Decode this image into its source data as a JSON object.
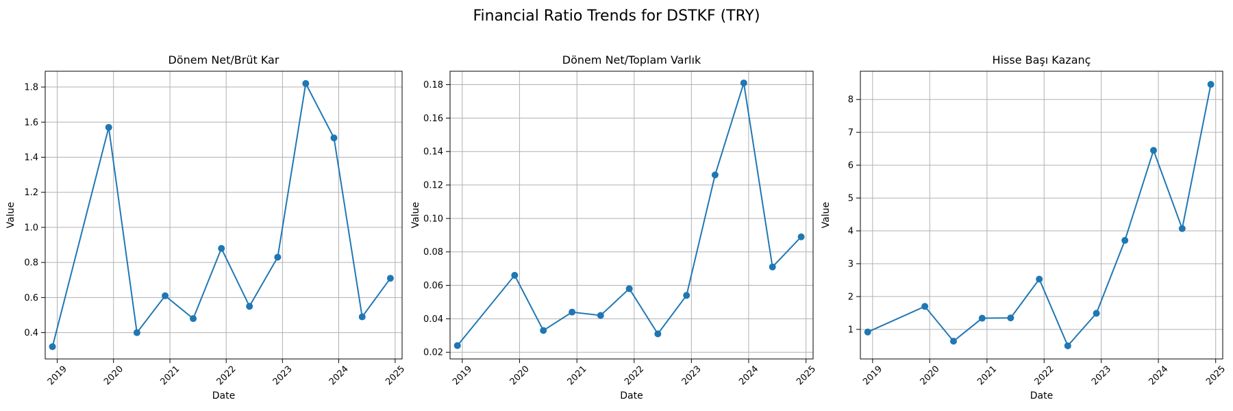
{
  "figure": {
    "title": "Financial Ratio Trends for DSTKF (TRY)"
  },
  "chart_data": [
    {
      "type": "line",
      "title": "Dönem Net/Brüt Kar",
      "xlabel": "Date",
      "ylabel": "Value",
      "x": [
        "2018-12-01",
        "2019-12-01",
        "2020-06-01",
        "2020-12-01",
        "2021-06-01",
        "2021-12-01",
        "2022-06-01",
        "2022-12-01",
        "2023-06-01",
        "2023-12-01",
        "2024-06-01",
        "2024-12-01"
      ],
      "values": [
        0.32,
        1.57,
        0.4,
        0.61,
        0.48,
        0.88,
        0.55,
        0.83,
        1.82,
        1.51,
        0.49,
        0.71
      ],
      "xlim": [
        "2018-10-15",
        "2025-02-15"
      ],
      "ylim": [
        0.25,
        1.89
      ],
      "xticks": [
        "2019",
        "2020",
        "2021",
        "2022",
        "2023",
        "2024",
        "2025"
      ],
      "yticks": [
        "0.4",
        "0.6",
        "0.8",
        "1.0",
        "1.2",
        "1.4",
        "1.6",
        "1.8"
      ],
      "grid": true,
      "color": "#1f77b4",
      "marker": "circle"
    },
    {
      "type": "line",
      "title": "Dönem Net/Toplam Varlık",
      "xlabel": "Date",
      "ylabel": "Value",
      "x": [
        "2018-12-01",
        "2019-12-01",
        "2020-06-01",
        "2020-12-01",
        "2021-06-01",
        "2021-12-01",
        "2022-06-01",
        "2022-12-01",
        "2023-06-01",
        "2023-12-01",
        "2024-06-01",
        "2024-12-01"
      ],
      "values": [
        0.024,
        0.066,
        0.033,
        0.044,
        0.042,
        0.058,
        0.031,
        0.054,
        0.126,
        0.181,
        0.071,
        0.089
      ],
      "xlim": [
        "2018-10-15",
        "2025-02-15"
      ],
      "ylim": [
        0.016,
        0.188
      ],
      "xticks": [
        "2019",
        "2020",
        "2021",
        "2022",
        "2023",
        "2024",
        "2025"
      ],
      "yticks": [
        "0.02",
        "0.04",
        "0.06",
        "0.08",
        "0.10",
        "0.12",
        "0.14",
        "0.16",
        "0.18"
      ],
      "grid": true,
      "color": "#1f77b4",
      "marker": "circle"
    },
    {
      "type": "line",
      "title": "Hisse Başı Kazanç",
      "xlabel": "Date",
      "ylabel": "Value",
      "x": [
        "2018-12-01",
        "2019-12-01",
        "2020-06-01",
        "2020-12-01",
        "2021-06-01",
        "2021-12-01",
        "2022-06-01",
        "2022-12-01",
        "2023-06-01",
        "2023-12-01",
        "2024-06-01",
        "2024-12-01"
      ],
      "values": [
        0.92,
        1.7,
        0.64,
        1.34,
        1.35,
        2.53,
        0.5,
        1.49,
        3.71,
        6.45,
        4.07,
        8.46
      ],
      "xlim": [
        "2018-10-15",
        "2025-02-15"
      ],
      "ylim": [
        0.1,
        8.86
      ],
      "xticks": [
        "2019",
        "2020",
        "2021",
        "2022",
        "2023",
        "2024",
        "2025"
      ],
      "yticks": [
        "1",
        "2",
        "3",
        "4",
        "5",
        "6",
        "7",
        "8"
      ],
      "grid": true,
      "color": "#1f77b4",
      "marker": "circle"
    }
  ]
}
